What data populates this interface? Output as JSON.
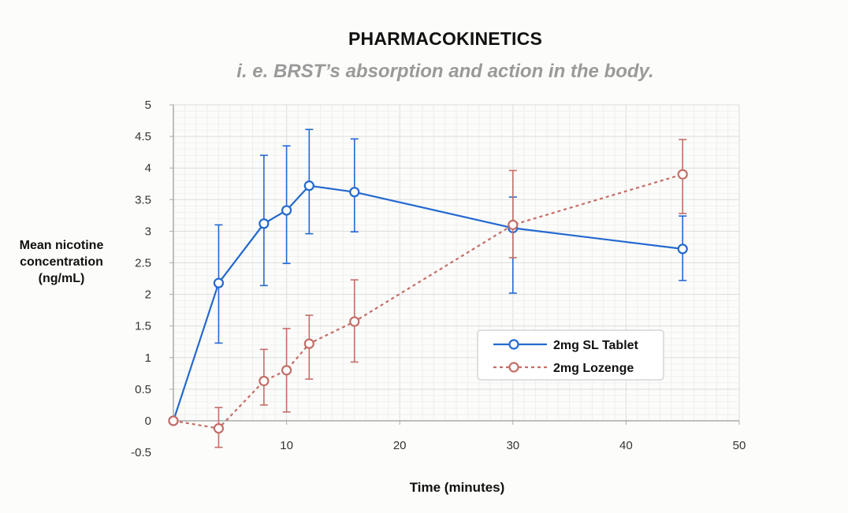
{
  "chart_data": {
    "type": "line",
    "title": "PHARMACOKINETICS",
    "subtitle": "i. e. BRST’s absorption and action in the body.",
    "xlabel": "Time (minutes)",
    "ylabel": "Mean nicotine concentration (ng/mL)",
    "xlim": [
      0,
      50
    ],
    "ylim": [
      -0.5,
      5
    ],
    "x_ticks": [
      10,
      20,
      30,
      40,
      50
    ],
    "y_ticks": [
      -0.5,
      0,
      0.5,
      1,
      1.5,
      2,
      2.5,
      3,
      3.5,
      4,
      4.5,
      5
    ],
    "grid": true,
    "legend_position": "lower-right",
    "series": [
      {
        "name": "2mg SL Tablet",
        "color": "#2469d0",
        "style": "solid",
        "x": [
          0,
          4,
          8,
          10,
          12,
          16,
          30,
          45
        ],
        "y": [
          0,
          2.18,
          3.12,
          3.33,
          3.72,
          3.62,
          3.05,
          2.72
        ],
        "err_low": [
          0,
          0.95,
          0.98,
          0.84,
          0.76,
          0.63,
          1.03,
          0.5
        ],
        "err_high": [
          0,
          0.92,
          1.08,
          1.02,
          0.89,
          0.84,
          0.49,
          0.52
        ]
      },
      {
        "name": "2mg Lozenge",
        "color": "#c46e67",
        "style": "dashed",
        "x": [
          0,
          4,
          8,
          10,
          12,
          16,
          30,
          45
        ],
        "y": [
          0,
          -0.12,
          0.63,
          0.8,
          1.22,
          1.57,
          3.1,
          3.9
        ],
        "err_low": [
          0,
          0.3,
          0.38,
          0.66,
          0.56,
          0.64,
          0.52,
          0.62
        ],
        "err_high": [
          0,
          0.33,
          0.5,
          0.66,
          0.45,
          0.66,
          0.86,
          0.55
        ]
      }
    ]
  }
}
